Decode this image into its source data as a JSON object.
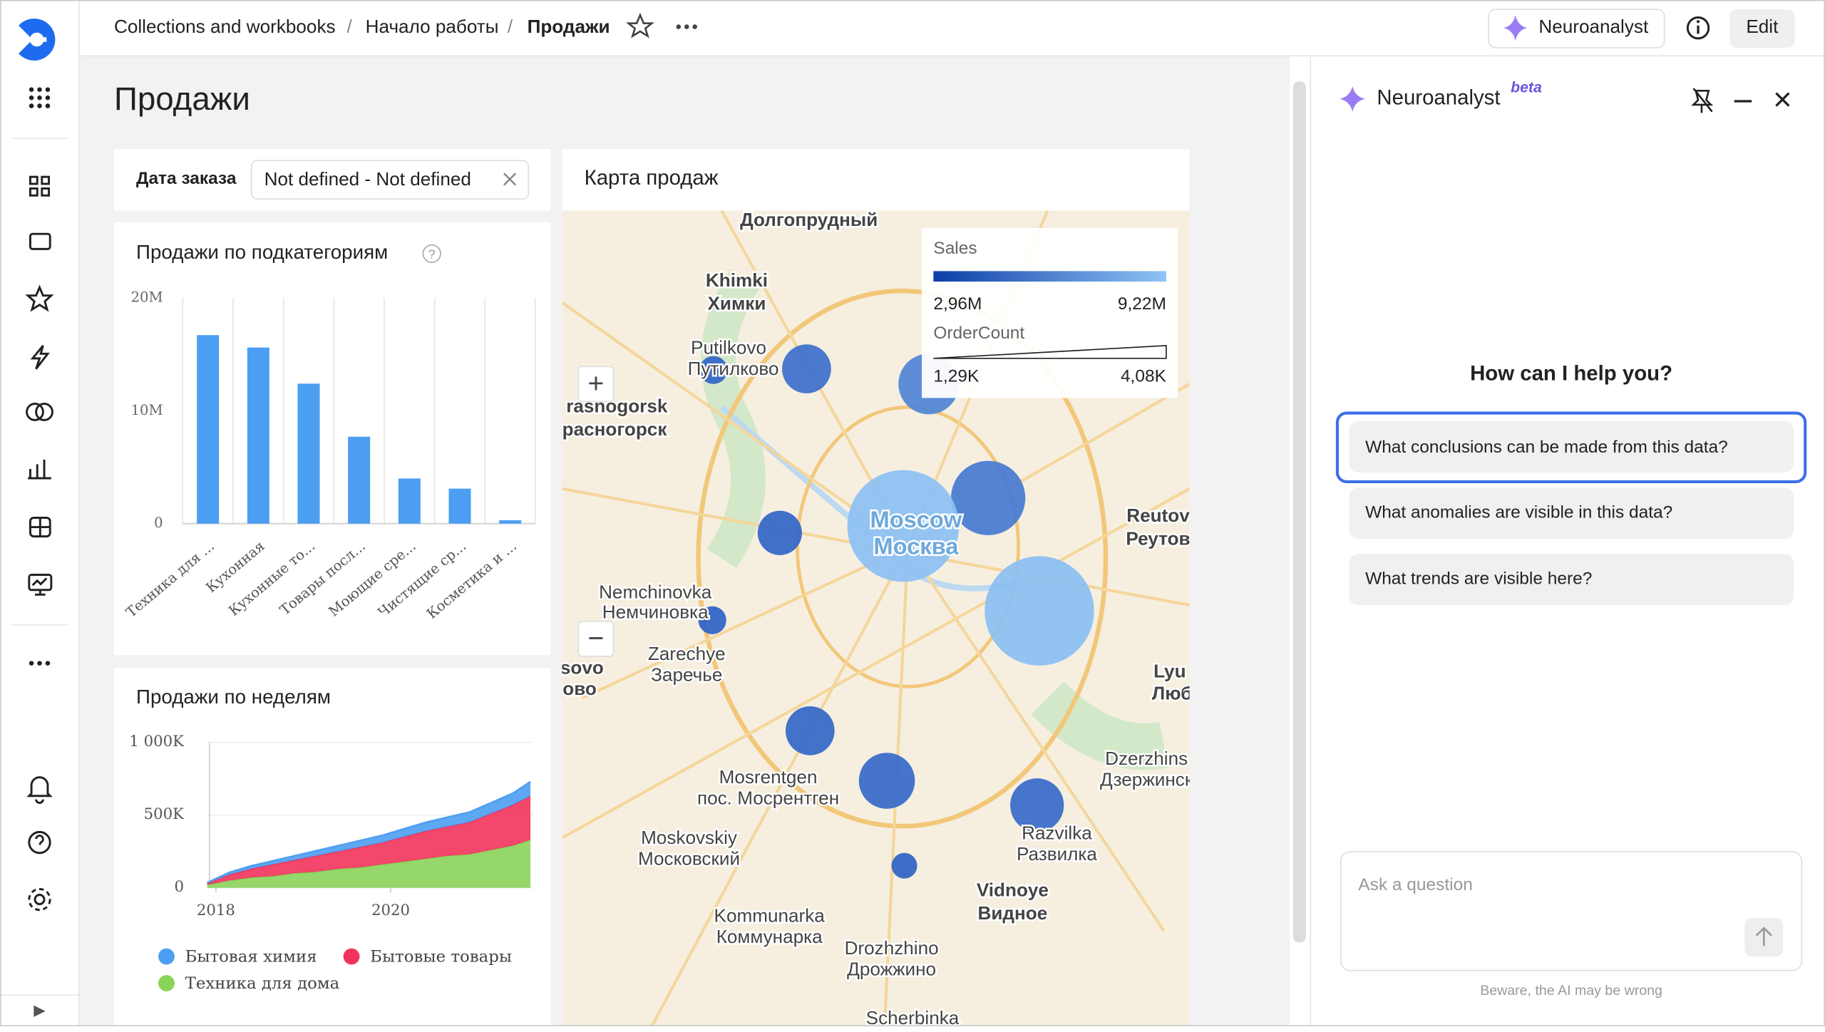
{
  "header": {
    "breadcrumbs": [
      "Collections and workbooks",
      "Начало работы",
      "Продажи"
    ],
    "neuro_button": "Neuroanalyst",
    "edit": "Edit"
  },
  "dashboard": {
    "title": "Продажи",
    "filter": {
      "label": "Дата заказа",
      "value": "Not defined - Not defined"
    }
  },
  "chart_data": [
    {
      "type": "bar",
      "title": "Продажи по подкатегориям",
      "categories": [
        "Техника для ...",
        "Кухонная",
        "Кухонные то...",
        "Товары посл...",
        "Моющие сре...",
        "Чистящие ср...",
        "Косметика и ..."
      ],
      "values": [
        16700000,
        15600000,
        12400000,
        7700000,
        4000000,
        3100000,
        300000
      ],
      "color": "#4c9ef2",
      "ylim": [
        0,
        20000000
      ],
      "yticks": [
        0,
        {
          "value": 10000000,
          "label": "10M"
        },
        {
          "value": 20000000,
          "label": "20M"
        }
      ],
      "grid": true
    },
    {
      "type": "area",
      "title": "Продажи по неделям",
      "stacked": true,
      "x": [
        2017.9,
        2018.15,
        2018.4,
        2018.65,
        2018.9,
        2019.15,
        2019.4,
        2019.65,
        2019.9,
        2020.15,
        2020.4,
        2020.65,
        2020.9,
        2021.15,
        2021.4,
        2021.6
      ],
      "series": [
        {
          "name": "Техника для дома",
          "color": "#8ad35a",
          "values": [
            20000,
            50000,
            70000,
            80000,
            100000,
            110000,
            130000,
            140000,
            160000,
            180000,
            200000,
            220000,
            230000,
            260000,
            290000,
            330000
          ]
        },
        {
          "name": "Бытовые товары",
          "color": "#f2335c",
          "values": [
            10000,
            40000,
            60000,
            80000,
            90000,
            110000,
            120000,
            140000,
            150000,
            170000,
            190000,
            200000,
            220000,
            250000,
            280000,
            300000
          ]
        },
        {
          "name": "Бытовая химия",
          "color": "#4c9ef2",
          "values": [
            5000,
            15000,
            20000,
            25000,
            30000,
            35000,
            40000,
            45000,
            50000,
            55000,
            60000,
            65000,
            70000,
            75000,
            80000,
            100000
          ]
        }
      ],
      "legend_order": [
        2,
        1,
        0
      ],
      "xlim": [
        2017.9,
        2021.63
      ],
      "xticks": [
        2018,
        2020
      ],
      "ylim": [
        0,
        1000000
      ],
      "yticks": [
        0,
        {
          "value": 500000,
          "label": "500K"
        },
        {
          "value": 1000000,
          "label": "1 000K"
        }
      ],
      "grid": true
    },
    {
      "type": "bubble-map",
      "title": "Карта продаж",
      "color_legend_title": "Sales",
      "color_range": [
        {
          "value": 2960000,
          "label": "2,96M"
        },
        {
          "value": 9220000,
          "label": "9,22M"
        }
      ],
      "size_legend_title": "OrderCount",
      "size_range": [
        {
          "value": 1290,
          "label": "1,29K"
        },
        {
          "value": 4080,
          "label": "4,08K"
        }
      ],
      "sales": [
        3200000,
        3900000,
        5200000,
        4600000,
        9000000,
        3300000,
        8900000,
        3100000,
        3400000,
        3500000,
        3600000,
        3100000
      ],
      "order_count": [
        1570,
        2200,
        2550,
        2960,
        4080,
        2060,
        4010,
        1570,
        2200,
        2410,
        2340,
        1500
      ],
      "labels": [
        "Долгопрудный",
        "Khimki",
        "Химки",
        "Putilkovo",
        "Путилково",
        "rasnogorsk",
        "расногорск",
        "Moscow",
        "Москва",
        "Reutov",
        "Реутов",
        "Nemchinovka",
        "Немчиновка",
        "Zarechye",
        "Заречье",
        "sovo",
        "ово",
        "Lyu",
        "Люб",
        "Mosrentgen",
        "пос. Мосрентген",
        "Dzerzhins",
        "Дзержинск",
        "Moskovskiy",
        "Московский",
        "Razvilka",
        "Развилка",
        "Vidnoye",
        "Видное",
        "Kommunarka",
        "Коммунарка",
        "Drozhzhino",
        "Дрожжино",
        "Scherbinka"
      ]
    }
  ],
  "assistant": {
    "title": "Neuroanalyst",
    "badge": "beta",
    "prompt": "How can I help you?",
    "suggestions": [
      "What conclusions can be made from this data?",
      "What anomalies are visible in this data?",
      "What trends are visible here?"
    ],
    "placeholder": "Ask a question",
    "disclaimer": "Beware, the AI may be wrong"
  }
}
